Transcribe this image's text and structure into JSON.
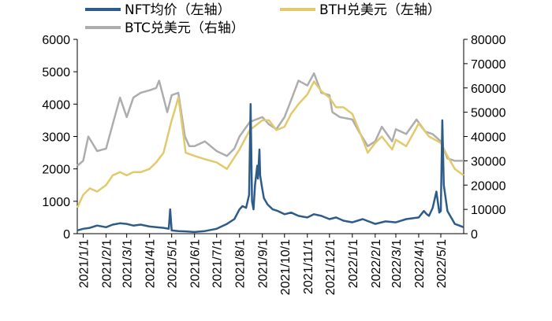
{
  "chart_data": {
    "type": "line",
    "title": "",
    "xlabel": "",
    "ylabel": "",
    "grid": false,
    "legend_position": "top",
    "x_range": [
      "2020-12-24",
      "2022-06-01"
    ],
    "left_axis": {
      "ylim": [
        0,
        6000
      ],
      "ticks": [
        "0",
        "1000",
        "2000",
        "3000",
        "4000",
        "5000",
        "6000"
      ],
      "tick_values": [
        0,
        1000,
        2000,
        3000,
        4000,
        5000,
        6000
      ]
    },
    "right_axis": {
      "ylim": [
        0,
        80000
      ],
      "ticks": [
        "0",
        "10000",
        "20000",
        "30000",
        "40000",
        "50000",
        "60000",
        "70000",
        "80000"
      ],
      "tick_values": [
        0,
        10000,
        20000,
        30000,
        40000,
        50000,
        60000,
        70000,
        80000
      ]
    },
    "categories": [
      "2021/1/1",
      "2021/2/1",
      "2021/3/1",
      "2021/4/1",
      "2021/5/1",
      "2021/6/1",
      "2021/7/1",
      "2021/8/1",
      "2021/9/1",
      "2021/10/1",
      "2021/11/1",
      "2021/12/1",
      "2022/1/1",
      "2022/2/1",
      "2022/3/1",
      "2022/4/1",
      "2022/5/1"
    ],
    "category_dates": [
      "2021-01-01",
      "2021-02-01",
      "2021-03-01",
      "2021-04-01",
      "2021-05-01",
      "2021-06-01",
      "2021-07-01",
      "2021-08-01",
      "2021-09-01",
      "2021-10-01",
      "2021-11-01",
      "2021-12-01",
      "2022-01-01",
      "2022-02-01",
      "2022-03-01",
      "2022-04-01",
      "2022-05-01"
    ],
    "series": [
      {
        "name": "NFT均价（左轴）",
        "axis": "left",
        "color": "#2E5C8A",
        "x": [
          "2020-12-24",
          "2021-01-01",
          "2021-01-10",
          "2021-01-20",
          "2021-02-01",
          "2021-02-10",
          "2021-02-20",
          "2021-03-01",
          "2021-03-10",
          "2021-03-20",
          "2021-04-01",
          "2021-04-10",
          "2021-04-20",
          "2021-04-27",
          "2021-04-29",
          "2021-05-01",
          "2021-05-10",
          "2021-05-20",
          "2021-06-01",
          "2021-06-15",
          "2021-07-01",
          "2021-07-15",
          "2021-07-25",
          "2021-08-01",
          "2021-08-05",
          "2021-08-10",
          "2021-08-14",
          "2021-08-16",
          "2021-08-18",
          "2021-08-20",
          "2021-08-22",
          "2021-08-25",
          "2021-08-26",
          "2021-08-28",
          "2021-08-29",
          "2021-08-31",
          "2021-09-03",
          "2021-09-08",
          "2021-09-15",
          "2021-09-22",
          "2021-10-01",
          "2021-10-10",
          "2021-10-20",
          "2021-11-01",
          "2021-11-10",
          "2021-11-20",
          "2021-12-01",
          "2021-12-10",
          "2021-12-20",
          "2022-01-01",
          "2022-01-15",
          "2022-02-01",
          "2022-02-15",
          "2022-03-01",
          "2022-03-15",
          "2022-04-01",
          "2022-04-08",
          "2022-04-12",
          "2022-04-15",
          "2022-04-20",
          "2022-04-25",
          "2022-04-29",
          "2022-05-01",
          "2022-05-03",
          "2022-05-05",
          "2022-05-10",
          "2022-05-20",
          "2022-06-01"
        ],
        "values": [
          100,
          150,
          180,
          250,
          200,
          280,
          320,
          300,
          250,
          280,
          220,
          200,
          180,
          150,
          750,
          100,
          80,
          70,
          50,
          80,
          150,
          300,
          450,
          750,
          850,
          800,
          1200,
          4000,
          1000,
          750,
          1500,
          2100,
          1700,
          2600,
          1800,
          1500,
          1100,
          900,
          750,
          700,
          600,
          650,
          550,
          500,
          600,
          550,
          450,
          500,
          400,
          350,
          450,
          300,
          380,
          350,
          450,
          500,
          700,
          600,
          550,
          800,
          1300,
          650,
          700,
          3500,
          1500,
          700,
          300,
          200
        ]
      },
      {
        "name": "BTH兑美元（左轴）",
        "axis": "left",
        "color": "#E2CA6C",
        "x": [
          "2020-12-24",
          "2021-01-01",
          "2021-01-10",
          "2021-01-20",
          "2021-02-01",
          "2021-02-10",
          "2021-02-20",
          "2021-03-01",
          "2021-03-10",
          "2021-03-20",
          "2021-04-01",
          "2021-04-10",
          "2021-04-20",
          "2021-05-01",
          "2021-05-05",
          "2021-05-10",
          "2021-05-12",
          "2021-05-20",
          "2021-06-01",
          "2021-06-15",
          "2021-07-01",
          "2021-07-15",
          "2021-08-01",
          "2021-08-15",
          "2021-09-01",
          "2021-09-10",
          "2021-09-20",
          "2021-10-01",
          "2021-10-10",
          "2021-10-20",
          "2021-11-01",
          "2021-11-10",
          "2021-11-20",
          "2021-12-01",
          "2021-12-10",
          "2021-12-20",
          "2022-01-01",
          "2022-01-10",
          "2022-01-22",
          "2022-02-01",
          "2022-02-10",
          "2022-02-24",
          "2022-03-01",
          "2022-03-15",
          "2022-04-01",
          "2022-04-15",
          "2022-05-01",
          "2022-05-10",
          "2022-05-20",
          "2022-06-01"
        ],
        "values": [
          800,
          1200,
          1400,
          1300,
          1500,
          1800,
          1900,
          1800,
          1900,
          1900,
          2000,
          2200,
          2500,
          3500,
          3800,
          4200,
          3900,
          2500,
          2400,
          2300,
          2200,
          2000,
          2600,
          3200,
          3500,
          3500,
          3200,
          3300,
          3700,
          4000,
          4300,
          4700,
          4400,
          4200,
          3900,
          3900,
          3700,
          3200,
          2500,
          2800,
          3000,
          2600,
          2900,
          2700,
          3400,
          3000,
          2800,
          2400,
          2000,
          1800
        ]
      },
      {
        "name": "BTC兑美元（右轴）",
        "axis": "right",
        "color": "#ADADAD",
        "x": [
          "2020-12-24",
          "2021-01-01",
          "2021-01-08",
          "2021-01-20",
          "2021-02-01",
          "2021-02-10",
          "2021-02-20",
          "2021-03-01",
          "2021-03-10",
          "2021-03-20",
          "2021-04-01",
          "2021-04-10",
          "2021-04-14",
          "2021-04-25",
          "2021-05-01",
          "2021-05-10",
          "2021-05-19",
          "2021-05-25",
          "2021-06-01",
          "2021-06-15",
          "2021-07-01",
          "2021-07-15",
          "2021-07-25",
          "2021-08-01",
          "2021-08-15",
          "2021-09-01",
          "2021-09-10",
          "2021-09-20",
          "2021-10-01",
          "2021-10-10",
          "2021-10-20",
          "2021-11-01",
          "2021-11-10",
          "2021-11-20",
          "2021-12-01",
          "2021-12-05",
          "2021-12-15",
          "2022-01-01",
          "2022-01-10",
          "2022-01-22",
          "2022-02-01",
          "2022-02-10",
          "2022-02-24",
          "2022-03-01",
          "2022-03-15",
          "2022-03-29",
          "2022-04-10",
          "2022-04-20",
          "2022-05-01",
          "2022-05-10",
          "2022-05-20",
          "2022-06-01"
        ],
        "values": [
          28000,
          30000,
          40000,
          34000,
          35000,
          45000,
          56000,
          48000,
          56000,
          58000,
          59000,
          60000,
          63000,
          50000,
          57000,
          58000,
          40000,
          36000,
          36000,
          38000,
          34000,
          32000,
          35000,
          40000,
          46000,
          48000,
          45000,
          43000,
          48000,
          55000,
          63000,
          61000,
          66000,
          58000,
          57000,
          50000,
          48000,
          47000,
          42000,
          36000,
          38000,
          44000,
          38000,
          43000,
          41000,
          47000,
          42000,
          41000,
          38000,
          31000,
          30000,
          30000
        ]
      }
    ]
  }
}
